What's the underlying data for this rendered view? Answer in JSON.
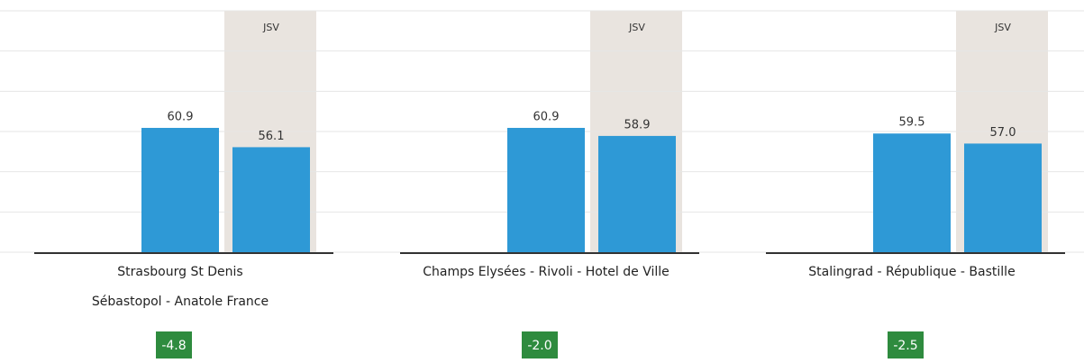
{
  "chart_data": [
    {
      "type": "bar",
      "title": [
        "Strasbourg St Denis",
        "Sébastopol - Anatole France"
      ],
      "categories": [
        null,
        "JSV"
      ],
      "values": [
        60.9,
        56.1
      ],
      "value_labels": [
        "60.9",
        "56.1"
      ],
      "color": "#2e99d6",
      "highlight_color": "#e9e4df",
      "ylim": [
        30,
        90
      ],
      "yticks": [
        30,
        40,
        50,
        60,
        70,
        80,
        90
      ],
      "grid": true,
      "difference": -4.8,
      "difference_color": "#2e8b3e"
    },
    {
      "type": "bar",
      "title": [
        "Champs Elysées - Rivoli - Hotel de Ville"
      ],
      "categories": [
        null,
        "JSV"
      ],
      "values": [
        60.9,
        58.9
      ],
      "value_labels": [
        "60.9",
        "58.9"
      ],
      "color": "#2e99d6",
      "highlight_color": "#e9e4df",
      "ylim": [
        30,
        90
      ],
      "yticks": [
        30,
        40,
        50,
        60,
        70,
        80,
        90
      ],
      "grid": true,
      "difference": {
        "value": -2.0,
        "label": "-2.0"
      },
      "difference_color": "#2e8b3e"
    },
    {
      "type": "bar",
      "title": [
        "Stalingrad - République - Bastille"
      ],
      "categories": [
        null,
        "JSV"
      ],
      "values": [
        59.5,
        57.0
      ],
      "value_labels": [
        "59.5",
        "57.0"
      ],
      "color": "#2e99d6",
      "highlight_color": "#e9e4df",
      "ylim": [
        30,
        90
      ],
      "yticks": [
        30,
        40,
        50,
        60,
        70,
        80,
        90
      ],
      "grid": true,
      "difference": -2.5,
      "difference_color": "#2e8b3e"
    }
  ]
}
